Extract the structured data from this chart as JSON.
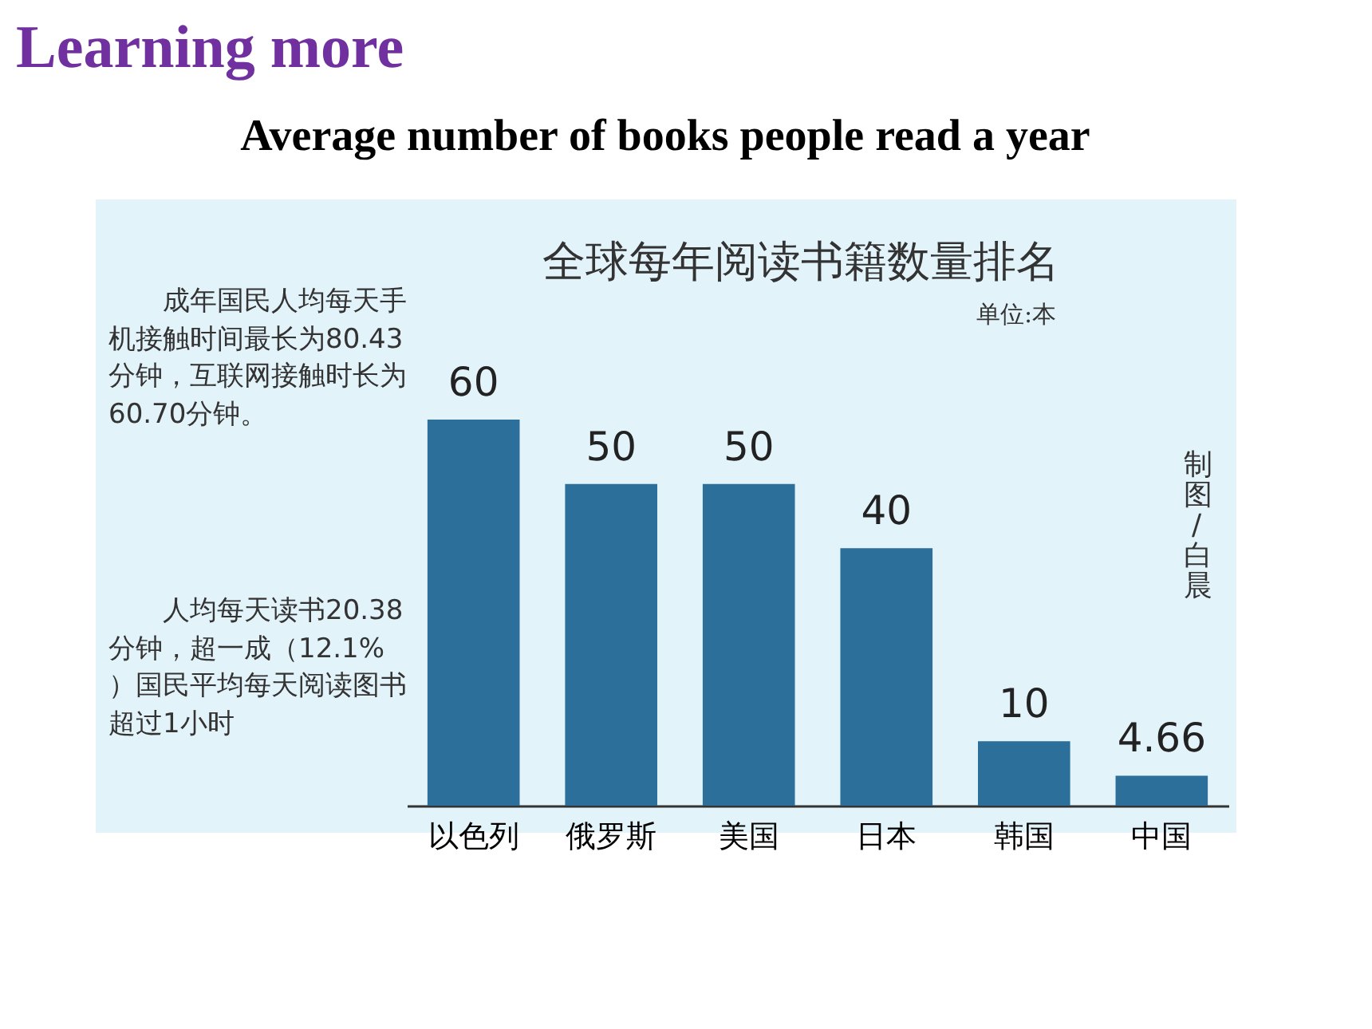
{
  "chart_data": {
    "type": "bar",
    "title": "Learning more",
    "subtitle": "Average number of books people read a year",
    "categories": [
      "以色列",
      "俄罗斯",
      "美国",
      "日本",
      "韩国",
      "中国"
    ],
    "values": [
      60,
      50,
      50,
      40,
      10,
      4.66
    ],
    "color": "#2b6f9a",
    "data_labels": true,
    "tick_labels": "x",
    "annotations": [
      "全球每年阅读书籍数量排名",
      "单位:本",
      "成年国民人均每天手机接触时间最长为80.43分钟，互联网接触时长为60.70分钟。",
      "人均每天读书20.38分钟，超一成（12.1%）国民平均每天阅读图书超过1小时",
      "制图/白晨"
    ]
  }
}
